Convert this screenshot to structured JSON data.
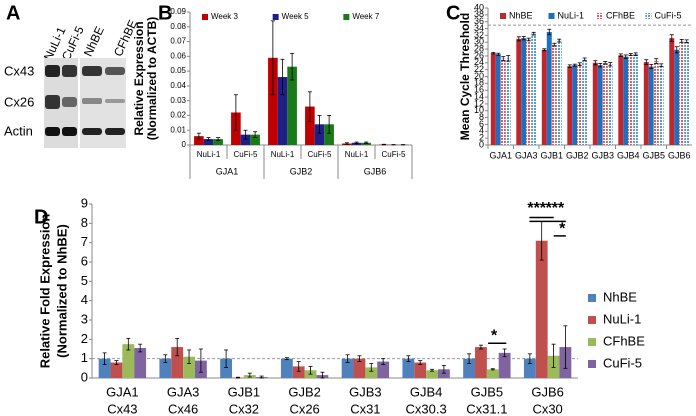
{
  "blot": {
    "panel": "A",
    "lanes": [
      "NuLi-1",
      "CuFi-5",
      "NhBE",
      "CFhBE"
    ],
    "rows": [
      "Cx43",
      "Cx26",
      "Actin"
    ]
  },
  "chart_data": [
    {
      "type": "bar",
      "panel": "B",
      "ylabel": [
        "Relative Expression",
        "(Normalized to ACTB)"
      ],
      "categories": [
        "NuLi-1",
        "CuFi-5",
        "NuLi-1",
        "CuFi-5",
        "NuLi-1",
        "CuFi-5"
      ],
      "category_groups": [
        "GJA1",
        "GJB2",
        "GJB6"
      ],
      "ylim": [
        0,
        0.09
      ],
      "yticks": [
        0,
        0.01,
        0.02,
        0.03,
        0.04,
        0.05,
        0.06,
        0.07,
        0.08,
        0.09
      ],
      "legend": "top",
      "series": [
        {
          "name": "Week 3",
          "color": "#c00000",
          "values": [
            0.006,
            0.022,
            0.059,
            0.026,
            0.001,
            0.0003
          ],
          "errors": [
            0.002,
            0.012,
            0.025,
            0.01,
            0.0005,
            0.0002
          ]
        },
        {
          "name": "Week 5",
          "color": "#1f1f8a",
          "values": [
            0.004,
            0.007,
            0.046,
            0.014,
            0.0015,
            0.0002
          ],
          "errors": [
            0.001,
            0.003,
            0.012,
            0.006,
            0.0005,
            0.0001
          ]
        },
        {
          "name": "Week 7",
          "color": "#1a7a1a",
          "values": [
            0.004,
            0.007,
            0.053,
            0.014,
            0.0015,
            0.0002
          ],
          "errors": [
            0.001,
            0.002,
            0.009,
            0.006,
            0.0005,
            0.0001
          ]
        }
      ]
    },
    {
      "type": "bar",
      "panel": "C",
      "ylabel": [
        "Mean Cycle Threshold"
      ],
      "categories": [
        "GJA1",
        "GJA3",
        "GJB1",
        "GJB2",
        "GJB3",
        "GJB4",
        "GJB5",
        "GJB6"
      ],
      "ylim": [
        0,
        40
      ],
      "yticks": [
        0,
        2,
        4,
        6,
        8,
        10,
        12,
        14,
        16,
        18,
        20,
        22,
        24,
        26,
        28,
        30,
        32,
        34,
        36,
        38,
        40
      ],
      "reference_line": 35,
      "legend": "top",
      "series": [
        {
          "name": "NhBE",
          "color": "#c0272d",
          "fill": "solid",
          "values": [
            26.8,
            31,
            27.8,
            23,
            24,
            26.2,
            24.2,
            31.2
          ],
          "errors": [
            0.2,
            0.6,
            0.3,
            0.4,
            0.6,
            0.4,
            0.7,
            1
          ]
        },
        {
          "name": "NuLi-1",
          "color": "#1f6fc0",
          "fill": "solid",
          "values": [
            26.5,
            31.2,
            33,
            23.3,
            23.3,
            25.8,
            22.9,
            27.8
          ],
          "errors": [
            0.3,
            0.5,
            0.8,
            0.3,
            0.5,
            0.5,
            0.6,
            0.9
          ]
        },
        {
          "name": "CFhBE",
          "color": "#e06060",
          "fill": "hatched",
          "values": [
            25.2,
            30.8,
            29.3,
            23.6,
            24,
            26.4,
            24.5,
            30.4
          ],
          "errors": [
            0.6,
            0.4,
            0.4,
            0.4,
            0.4,
            0.3,
            0.7,
            0.4
          ]
        },
        {
          "name": "CuFi-5",
          "color": "#5b9bd5",
          "fill": "hatched",
          "values": [
            25.3,
            32.5,
            30.5,
            25,
            23.6,
            26.5,
            23.3,
            30.3
          ],
          "errors": [
            0.8,
            0.4,
            0.4,
            0.4,
            0.5,
            0.4,
            0.4,
            0.4
          ]
        }
      ]
    },
    {
      "type": "bar",
      "panel": "D",
      "ylabel": [
        "Relative Fold Expression",
        "(Normalized to NhBE)"
      ],
      "categories": [
        "GJA1",
        "GJA3",
        "GJB1",
        "GJB2",
        "GJB3",
        "GJB4",
        "GJB5",
        "GJB6"
      ],
      "subcategories": [
        "Cx43",
        "Cx46",
        "Cx32",
        "Cx26",
        "Cx31",
        "Cx30.3",
        "Cx31.1",
        "Cx30"
      ],
      "ylim": [
        0,
        9
      ],
      "yticks": [
        0,
        1,
        2,
        3,
        4,
        5,
        6,
        7,
        8,
        9
      ],
      "reference_line": 1,
      "legend": "right",
      "annotations": [
        "*",
        "***",
        "***",
        "*"
      ],
      "series": [
        {
          "name": "NhBE",
          "color": "#4f81bd",
          "values": [
            1,
            1,
            1,
            1,
            1,
            1,
            1,
            1
          ],
          "errors": [
            0.3,
            0.2,
            0.45,
            0.05,
            0.2,
            0.15,
            0.25,
            0.25
          ]
        },
        {
          "name": "NuLi-1",
          "color": "#c0504d",
          "values": [
            0.8,
            1.6,
            0.02,
            0.6,
            1,
            0.8,
            1.6,
            7.1
          ],
          "errors": [
            0.1,
            0.45,
            0.02,
            0.25,
            0.15,
            0.1,
            0.1,
            1
          ]
        },
        {
          "name": "CFhBE",
          "color": "#9bbb59",
          "values": [
            1.75,
            1.1,
            0.15,
            0.4,
            0.55,
            0.4,
            0.45,
            1.15
          ],
          "errors": [
            0.3,
            0.35,
            0.1,
            0.2,
            0.2,
            0.05,
            0.03,
            0.6
          ]
        },
        {
          "name": "CuFi-5",
          "color": "#8064a2",
          "values": [
            1.55,
            0.9,
            0.05,
            0.15,
            0.85,
            0.45,
            1.3,
            1.6
          ],
          "errors": [
            0.2,
            0.6,
            0.05,
            0.15,
            0.15,
            0.2,
            0.2,
            1.1
          ]
        }
      ]
    }
  ]
}
